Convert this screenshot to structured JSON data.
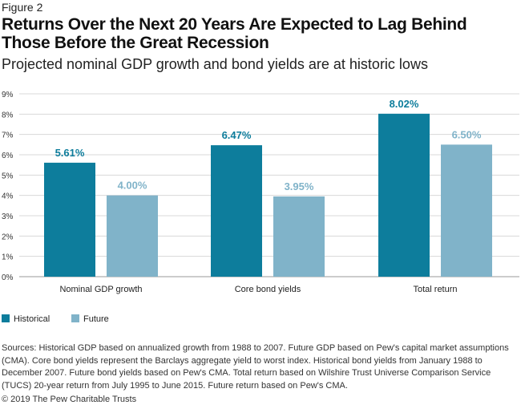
{
  "figure_label": "Figure 2",
  "title": "Returns Over the Next 20 Years Are Expected to Lag Behind Those Before the Great Recession",
  "subtitle": "Projected nominal GDP growth and bond yields are at historic lows",
  "colors": {
    "historical": "#0d7d9c",
    "future": "#80b3c9",
    "axis": "#999999",
    "grid": "#d8d8d8"
  },
  "chart_data": {
    "type": "bar",
    "categories": [
      "Nominal GDP growth",
      "Core bond yields",
      "Total return"
    ],
    "series": [
      {
        "name": "Historical",
        "values": [
          5.61,
          6.47,
          8.02
        ],
        "labels": [
          "5.61%",
          "6.47%",
          "8.02%"
        ]
      },
      {
        "name": "Future",
        "values": [
          4.0,
          3.95,
          6.5
        ],
        "labels": [
          "4.00%",
          "3.95%",
          "6.50%"
        ]
      }
    ],
    "ylim": [
      0,
      9
    ],
    "yticks": [
      "0%",
      "1%",
      "2%",
      "3%",
      "4%",
      "5%",
      "6%",
      "7%",
      "8%",
      "9%"
    ],
    "xlabel": "",
    "ylabel": "",
    "legend_position": "bottom-left"
  },
  "legend": [
    {
      "label": "Historical"
    },
    {
      "label": "Future"
    }
  ],
  "sources": "Sources: Historical GDP based on annualized growth from 1988 to 2007. Future GDP based on Pew's capital market assumptions (CMA). Core bond yields represent the Barclays aggregate yield to worst index. Historical bond yields from January 1988 to December 2007. Future bond yields based on Pew's CMA. Total return based on Wilshire Trust Universe Comparison Service (TUCS) 20-year return from July 1995 to June 2015. Future return based on Pew's CMA.",
  "copyright": "© 2019 The Pew Charitable Trusts"
}
